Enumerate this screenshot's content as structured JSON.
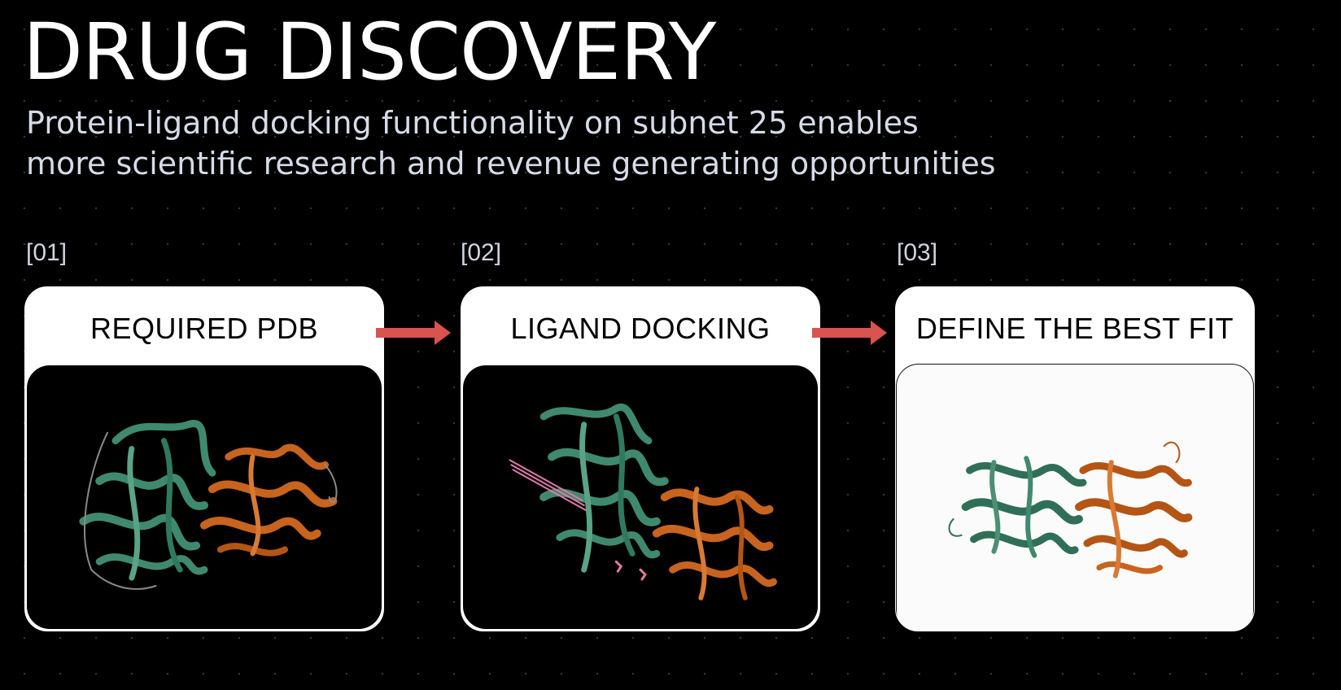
{
  "title": "DRUG DISCOVERY",
  "subtitle_lines": [
    "Protein-ligand docking functionality on subnet 25 enables",
    "more scientific research and revenue generating opportunities"
  ],
  "steps": [
    {
      "number": "[01]",
      "title": "REQUIRED PDB"
    },
    {
      "number": "[02]",
      "title": "LIGAND DOCKING"
    },
    {
      "number": "[03]",
      "title": "DEFINE THE BEST FIT"
    }
  ],
  "colors": {
    "background": "#000000",
    "arrow": "#d9534f",
    "protein_a": "#3f8a6e",
    "protein_b": "#c8641e",
    "ligand": "#e07aa8"
  },
  "icons": [
    "arrow-right-icon",
    "protein-structure-image"
  ]
}
